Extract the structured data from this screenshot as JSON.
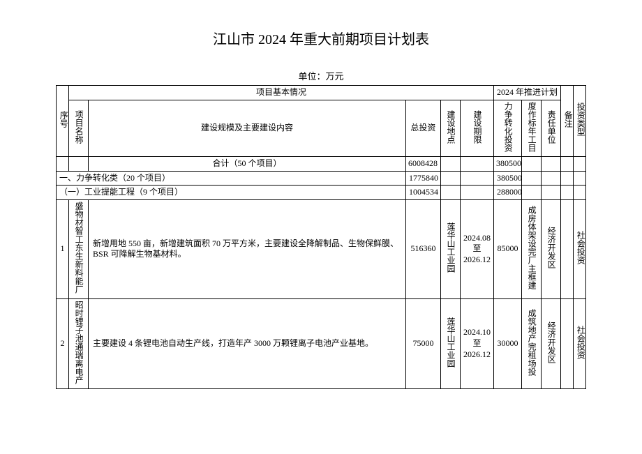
{
  "title": "江山市 2024 年重大前期项目计划表",
  "unit": "单位：万元",
  "headers": {
    "seq": "序号",
    "basic": "项目基本情况",
    "plan": "2024 年推进计划",
    "note": "备注",
    "name": "项目名称",
    "content": "建设规模及主要建设内容",
    "invest": "总投资",
    "loc": "建设地点",
    "period": "建设期限",
    "conv": "力争转化投资",
    "target": "度作标年工目",
    "resp": "责任单位",
    "type": "投资类型"
  },
  "total": {
    "label": "合计（50 个项目）",
    "invest": "6008428",
    "conv": "380500"
  },
  "cat1": {
    "label": "一、力争转化类（20 个项目）",
    "invest": "1775840",
    "conv": "380500"
  },
  "sub1": {
    "label": "（一）工业提能工程（9 个项目）",
    "invest": "1004534",
    "conv": "288000"
  },
  "rows": [
    {
      "seq": "1",
      "name": "盛物材智工东生新料能厂",
      "content": "新增用地 550 亩，新增建筑面积 70 万平方米，主要建设全降解制品、生物保鲜膜、BSR 可降解生物基材料。",
      "invest": "516360",
      "loc": "莲华山工业园",
      "period": "2024.08 至 2026.12",
      "conv": "85000",
      "target": "成房体架设完厂主框建",
      "resp": "经济开发区",
      "type": "社会投资"
    },
    {
      "seq": "2",
      "name": "昭时锂子池通瑞离电产",
      "content": "主要建设 4 条锂电池自动生产线，打造年产 3000 万颗锂离子电池产业基地。",
      "invest": "75000",
      "loc": "莲华山工业园",
      "period": "2024.10 至 2026.12",
      "conv": "30000",
      "target": "成筑地产完租场投",
      "resp": "经济开发区",
      "type": "社会投资"
    }
  ]
}
